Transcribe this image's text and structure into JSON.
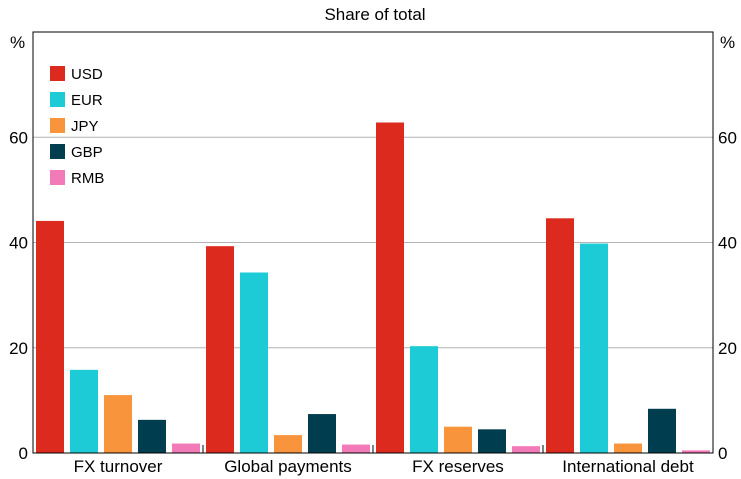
{
  "chart_data": {
    "type": "bar",
    "title": "Share of total",
    "y_unit_left": "%",
    "y_unit_right": "%",
    "ylim": [
      0,
      80
    ],
    "yticks": [
      0,
      20,
      40,
      60
    ],
    "grid": true,
    "legend_position": "top-left",
    "categories": [
      "FX turnover",
      "Global payments",
      "FX reserves",
      "International debt"
    ],
    "series": [
      {
        "name": "USD",
        "color": "#dc2a1f",
        "values": [
          44.1,
          39.3,
          62.8,
          44.6
        ]
      },
      {
        "name": "EUR",
        "color": "#1ccbd6",
        "values": [
          15.8,
          34.3,
          20.3,
          39.8
        ]
      },
      {
        "name": "JPY",
        "color": "#f8953c",
        "values": [
          11.0,
          3.4,
          5.0,
          1.8
        ]
      },
      {
        "name": "GBP",
        "color": "#003d4e",
        "values": [
          6.3,
          7.4,
          4.5,
          8.4
        ]
      },
      {
        "name": "RMB",
        "color": "#f27ab8",
        "values": [
          1.8,
          1.6,
          1.3,
          0.5
        ]
      }
    ]
  }
}
